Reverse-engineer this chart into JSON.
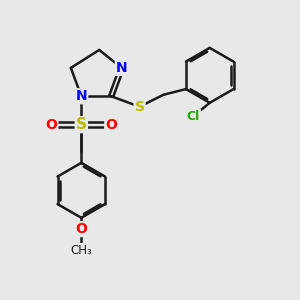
{
  "bg_color": "#e8e8e8",
  "bond_color": "#1a1a1a",
  "bond_width": 1.8,
  "atom_colors": {
    "N": "#0000ee",
    "S": "#bbbb00",
    "O": "#ff0000",
    "Cl": "#22aa00",
    "C": "#1a1a1a"
  },
  "font_size": 10,
  "fig_size": [
    3.0,
    3.0
  ],
  "dpi": 100
}
